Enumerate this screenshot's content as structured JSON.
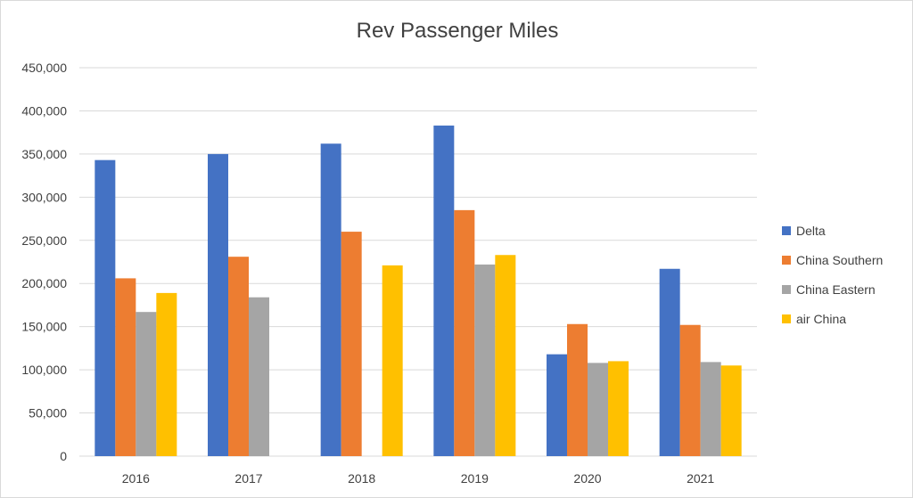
{
  "chart_data": {
    "type": "bar",
    "title": "Rev Passenger Miles",
    "xlabel": "",
    "ylabel": "",
    "categories": [
      "2016",
      "2017",
      "2018",
      "2019",
      "2020",
      "2021"
    ],
    "series": [
      {
        "name": "Delta",
        "color": "#4472C4",
        "values": [
          343000,
          350000,
          362000,
          383000,
          118000,
          217000
        ]
      },
      {
        "name": "China Southern",
        "color": "#ED7D31",
        "values": [
          206000,
          231000,
          260000,
          285000,
          153000,
          152000
        ]
      },
      {
        "name": "China Eastern",
        "color": "#A5A5A5",
        "values": [
          167000,
          184000,
          null,
          222000,
          108000,
          109000
        ]
      },
      {
        "name": "air China",
        "color": "#FFC000",
        "values": [
          189000,
          null,
          221000,
          233000,
          110000,
          105000
        ]
      }
    ],
    "ylim": [
      0,
      450000
    ],
    "yticks": [
      "0",
      "50,000",
      "100,000",
      "150,000",
      "200,000",
      "250,000",
      "300,000",
      "350,000",
      "400,000",
      "450,000"
    ],
    "grid": true,
    "legend_position": "right"
  }
}
